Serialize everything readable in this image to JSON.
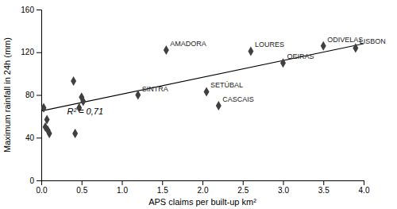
{
  "chart_data": {
    "type": "scatter",
    "x": [
      0.03,
      0.05,
      0.07,
      0.08,
      0.1,
      0.4,
      0.42,
      0.47,
      0.5,
      0.52,
      1.2,
      1.55,
      2.05,
      2.2,
      2.6,
      3.0,
      3.5,
      3.9
    ],
    "values": [
      68,
      50,
      57,
      47,
      44,
      93,
      44,
      68,
      78,
      74,
      80,
      122,
      83,
      70,
      121,
      110,
      126,
      124
    ],
    "labels": [
      null,
      null,
      null,
      null,
      null,
      null,
      null,
      null,
      null,
      null,
      "SINTRA",
      "AMADORA",
      "SETÚBAL",
      "CASCAIS",
      "LOURES",
      "OEIRAS",
      "ODIVELAS",
      "LISBON"
    ],
    "color": "#404040",
    "marker": "diamond",
    "trendline": {
      "x": [
        0.0,
        4.0
      ],
      "values": [
        65,
        128
      ],
      "color": "#000000"
    },
    "annotations": [
      {
        "text": "R² = 0,71",
        "x": 0.32,
        "y": 62
      }
    ],
    "xlabel": "APS claims per built-up km²",
    "ylabel": "Maximum rainfall in 24h (mm)",
    "xlim": [
      0,
      4.0
    ],
    "ylim": [
      0,
      160
    ],
    "xticks": [
      {
        "value": 0.0,
        "label": "0.0"
      },
      0.5,
      {
        "value": 1.0,
        "label": "1.0"
      },
      1.5,
      {
        "value": 2.0,
        "label": "2.0"
      },
      2.5,
      {
        "value": 3.0,
        "label": "3.0"
      },
      3.5,
      {
        "value": 4.0,
        "label": "4.0"
      }
    ],
    "yticks": [
      0,
      40,
      80,
      120,
      160
    ],
    "grid": false
  }
}
